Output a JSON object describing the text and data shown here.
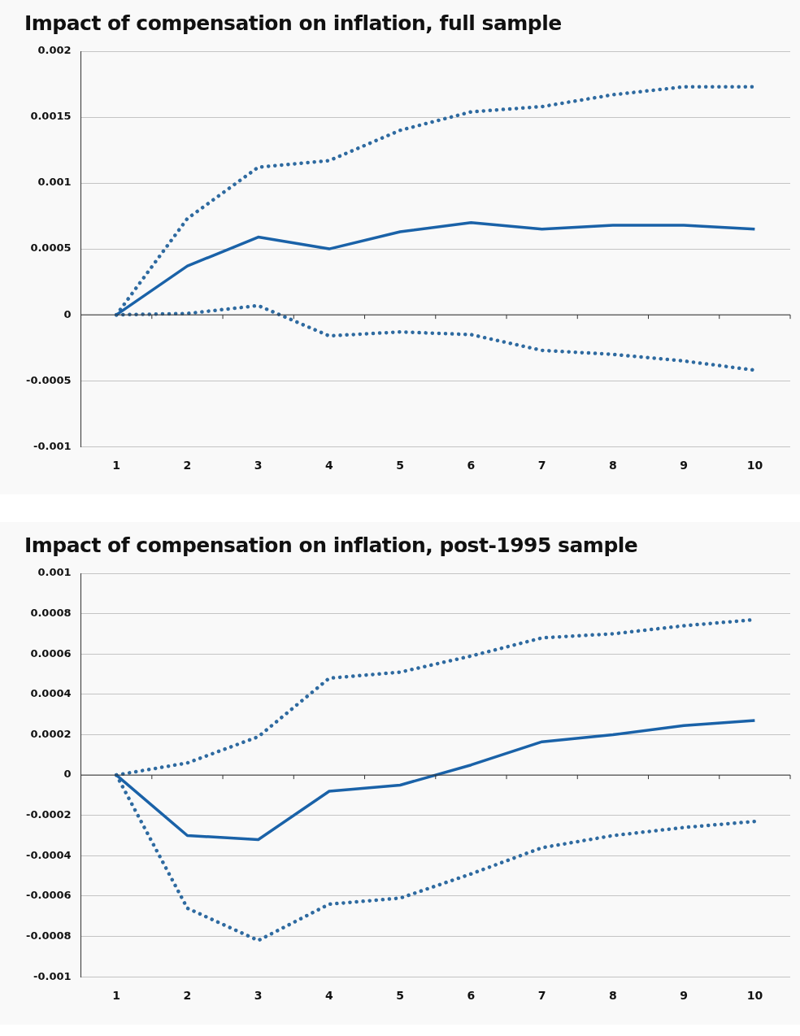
{
  "chart_data": [
    {
      "type": "line",
      "title": "Impact of compensation on inflation, full sample",
      "categories": [
        "1",
        "2",
        "3",
        "4",
        "5",
        "6",
        "7",
        "8",
        "9",
        "10"
      ],
      "series": [
        {
          "color": "#1a62a8",
          "line_style": "solid",
          "values": [
            0,
            0.00037,
            0.00059,
            0.0005,
            0.00063,
            0.0007,
            0.00065,
            0.00068,
            0.00068,
            0.00065
          ]
        },
        {
          "color": "#2e6aa0",
          "line_style": "dotted",
          "values": [
            0,
            0.00073,
            0.00112,
            0.00117,
            0.0014,
            0.00154,
            0.00158,
            0.00167,
            0.00173,
            0.00173
          ]
        },
        {
          "color": "#2e6aa0",
          "line_style": "dotted",
          "values": [
            0,
            1e-05,
            7e-05,
            -0.00016,
            -0.00013,
            -0.00015,
            -0.00027,
            -0.0003,
            -0.00035,
            -0.00042
          ]
        }
      ],
      "ylim": [
        -0.001,
        0.002
      ],
      "yticks": [
        -0.001,
        -0.0005,
        0,
        0.0005,
        0.001,
        0.0015,
        0.002
      ],
      "grid": "y",
      "legend": false,
      "marker": "none"
    },
    {
      "type": "line",
      "title": "Impact of compensation on inflation, post-1995 sample",
      "categories": [
        "1",
        "2",
        "3",
        "4",
        "5",
        "6",
        "7",
        "8",
        "9",
        "10"
      ],
      "series": [
        {
          "color": "#1a62a8",
          "line_style": "solid",
          "values": [
            0,
            -0.0003,
            -0.00032,
            -8e-05,
            -5e-05,
            5e-05,
            0.000165,
            0.0002,
            0.000245,
            0.00027
          ]
        },
        {
          "color": "#2e6aa0",
          "line_style": "dotted",
          "values": [
            0,
            6e-05,
            0.00019,
            0.00048,
            0.00051,
            0.00059,
            0.00068,
            0.0007,
            0.00074,
            0.00077
          ]
        },
        {
          "color": "#2e6aa0",
          "line_style": "dotted",
          "values": [
            0,
            -0.00066,
            -0.00082,
            -0.00064,
            -0.00061,
            -0.00049,
            -0.00036,
            -0.0003,
            -0.00026,
            -0.00023
          ]
        }
      ],
      "ylim": [
        -0.001,
        0.001
      ],
      "yticks": [
        -0.001,
        -0.0008,
        -0.0006,
        -0.0004,
        -0.0002,
        0,
        0.0002,
        0.0004,
        0.0006,
        0.0008,
        0.001
      ],
      "grid": "y",
      "legend": false,
      "marker": "none"
    }
  ]
}
